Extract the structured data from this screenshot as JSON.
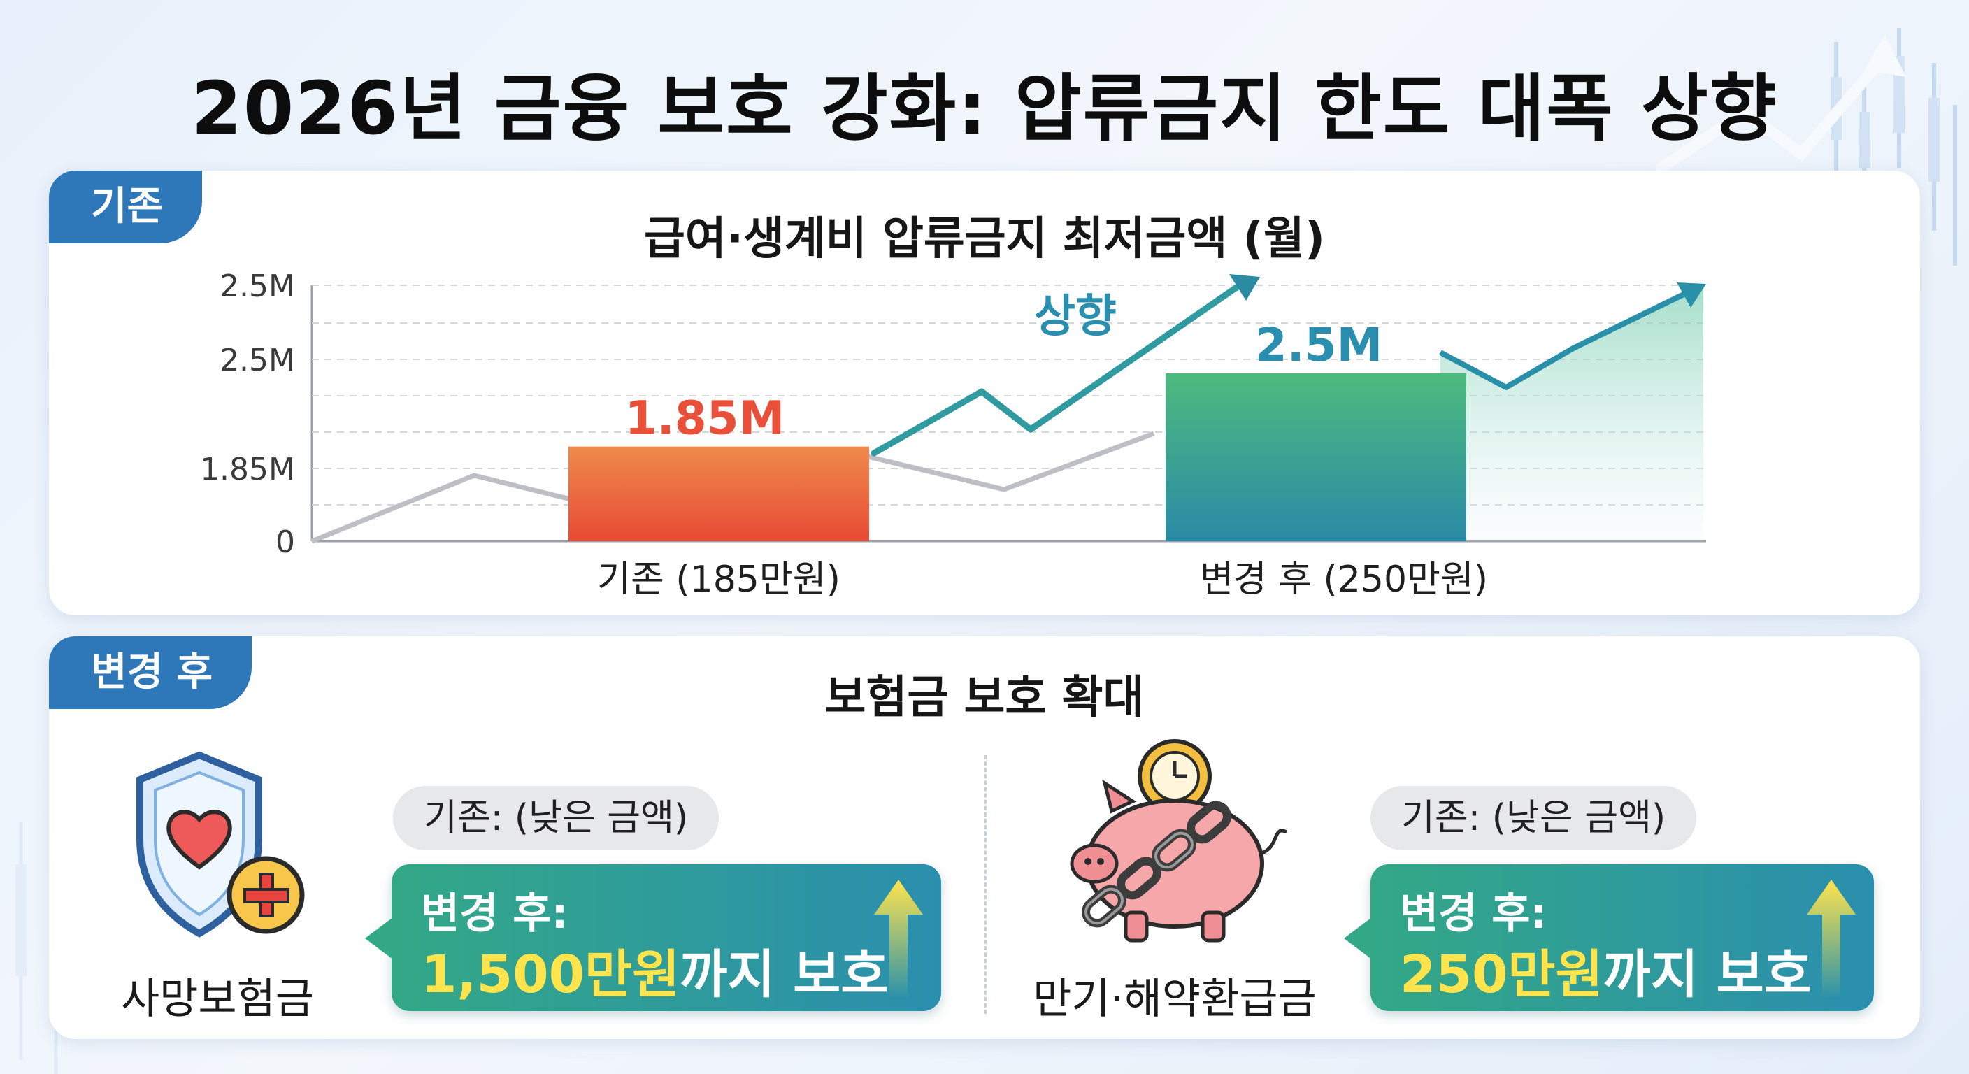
{
  "title": "2026년 금융 보호 강화: 압류금지 한도 대폭 상향",
  "top_section": {
    "tab": "기존",
    "chart_title": "급여·생계비 압류금지 최저금액 (월)",
    "rise_label": "상향"
  },
  "chart_data": {
    "type": "bar",
    "title": "급여·생계비 압류금지 최저금액 (월)",
    "categories": [
      "기존 (185만원)",
      "변경 후 (250만원)"
    ],
    "values": [
      1.85,
      2.5
    ],
    "value_labels": [
      "1.85M",
      "2.5M"
    ],
    "y_tick_labels": [
      "0",
      "1.85M",
      "2.5M",
      "2.5M"
    ],
    "annotation": "상향",
    "grid": true,
    "colors": {
      "before": "#f0583a",
      "after": "#2aa487",
      "trend": "#2a8fa8",
      "grey_line": "#b9bcc2"
    }
  },
  "bottom_section": {
    "tab": "변경 후",
    "title": "보험금 보호 확대",
    "items": [
      {
        "icon": "shield-heart-icon",
        "label": "사망보험금",
        "old": "기존: (낮은 금액)",
        "new_prefix": "변경 후:",
        "new_amount": "1,500만원",
        "new_suffix": "까지 보호"
      },
      {
        "icon": "piggy-bank-chain-icon",
        "label": "만기·해약환급금",
        "old": "기존: (낮은 금액)",
        "new_prefix": "변경 후:",
        "new_amount": "250만원",
        "new_suffix": "까지 보호"
      }
    ]
  },
  "colors": {
    "tab": "#2e78ba",
    "accent_teal": "#2a8fae",
    "accent_green": "#33a886",
    "highlight": "#ffe44d"
  }
}
